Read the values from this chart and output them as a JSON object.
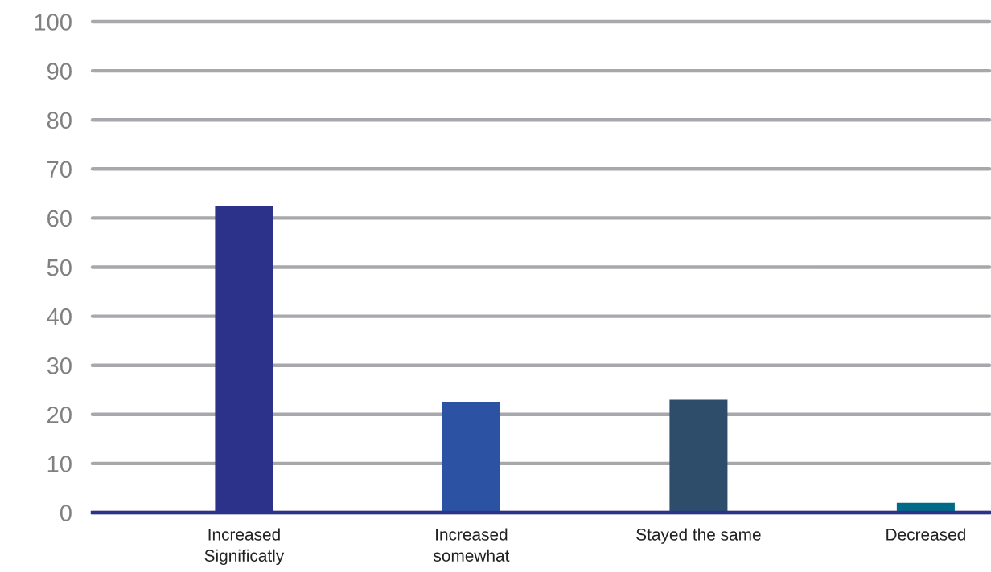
{
  "chart_data": {
    "type": "bar",
    "categories": [
      "Increased\nSignificatly",
      "Increased\nsomewhat",
      "Stayed the same",
      "Decreased"
    ],
    "values": [
      62.5,
      22.5,
      23,
      2
    ],
    "colors": [
      "#2c318a",
      "#2b52a3",
      "#2e4d6b",
      "#006b86"
    ],
    "ylim": [
      0,
      100
    ],
    "yticks": [
      0,
      10,
      20,
      30,
      40,
      50,
      60,
      70,
      80,
      90,
      100
    ],
    "grid": "y"
  }
}
